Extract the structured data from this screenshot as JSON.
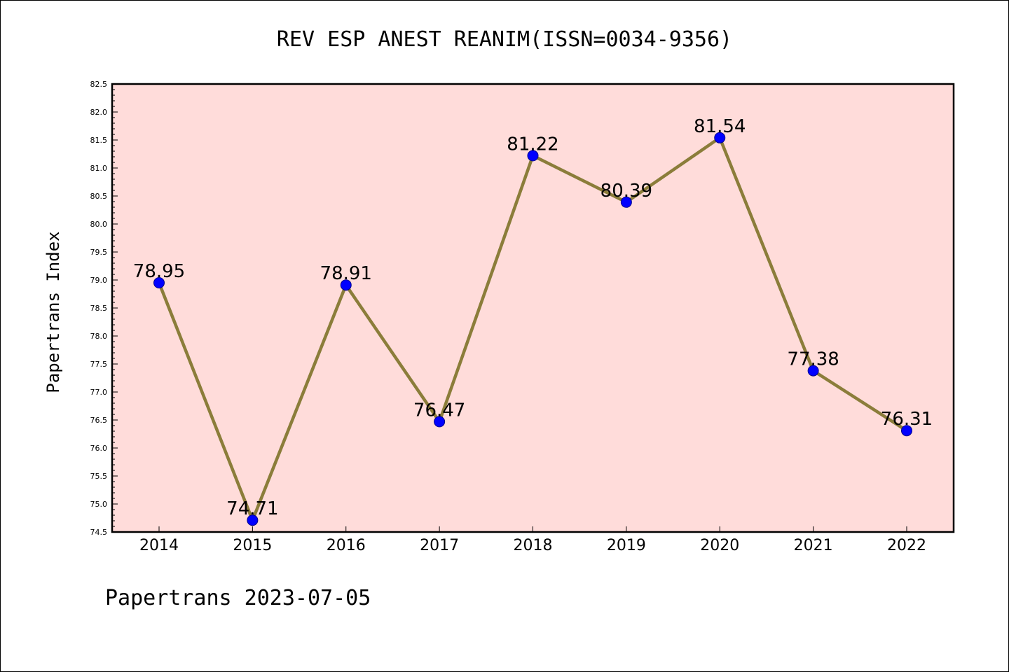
{
  "chart_data": {
    "type": "line",
    "title": "REV ESP ANEST REANIM(ISSN=0034-9356)",
    "xlabel": "",
    "ylabel": "Papertrans Index",
    "footer": "Papertrans 2023-07-05",
    "categories": [
      "2014",
      "2015",
      "2016",
      "2017",
      "2018",
      "2019",
      "2020",
      "2021",
      "2022"
    ],
    "values": [
      78.95,
      74.71,
      78.91,
      76.47,
      81.22,
      80.39,
      81.54,
      77.38,
      76.31
    ],
    "data_labels": [
      "78.95",
      "74.71",
      "78.91",
      "76.47",
      "81.22",
      "80.39",
      "81.54",
      "77.38",
      "76.31"
    ],
    "ylim": [
      74.5,
      82.5
    ],
    "yticks": [
      "74.5",
      "75.0",
      "75.5",
      "76.0",
      "76.5",
      "77.0",
      "77.5",
      "78.0",
      "78.5",
      "79.0",
      "79.5",
      "80.0",
      "80.5",
      "81.0",
      "81.5",
      "82.0",
      "82.5"
    ],
    "grid": false,
    "colors": {
      "plot_background": "#FFDCDA",
      "line": "#8B7D3A",
      "marker": "#0000FF"
    }
  }
}
